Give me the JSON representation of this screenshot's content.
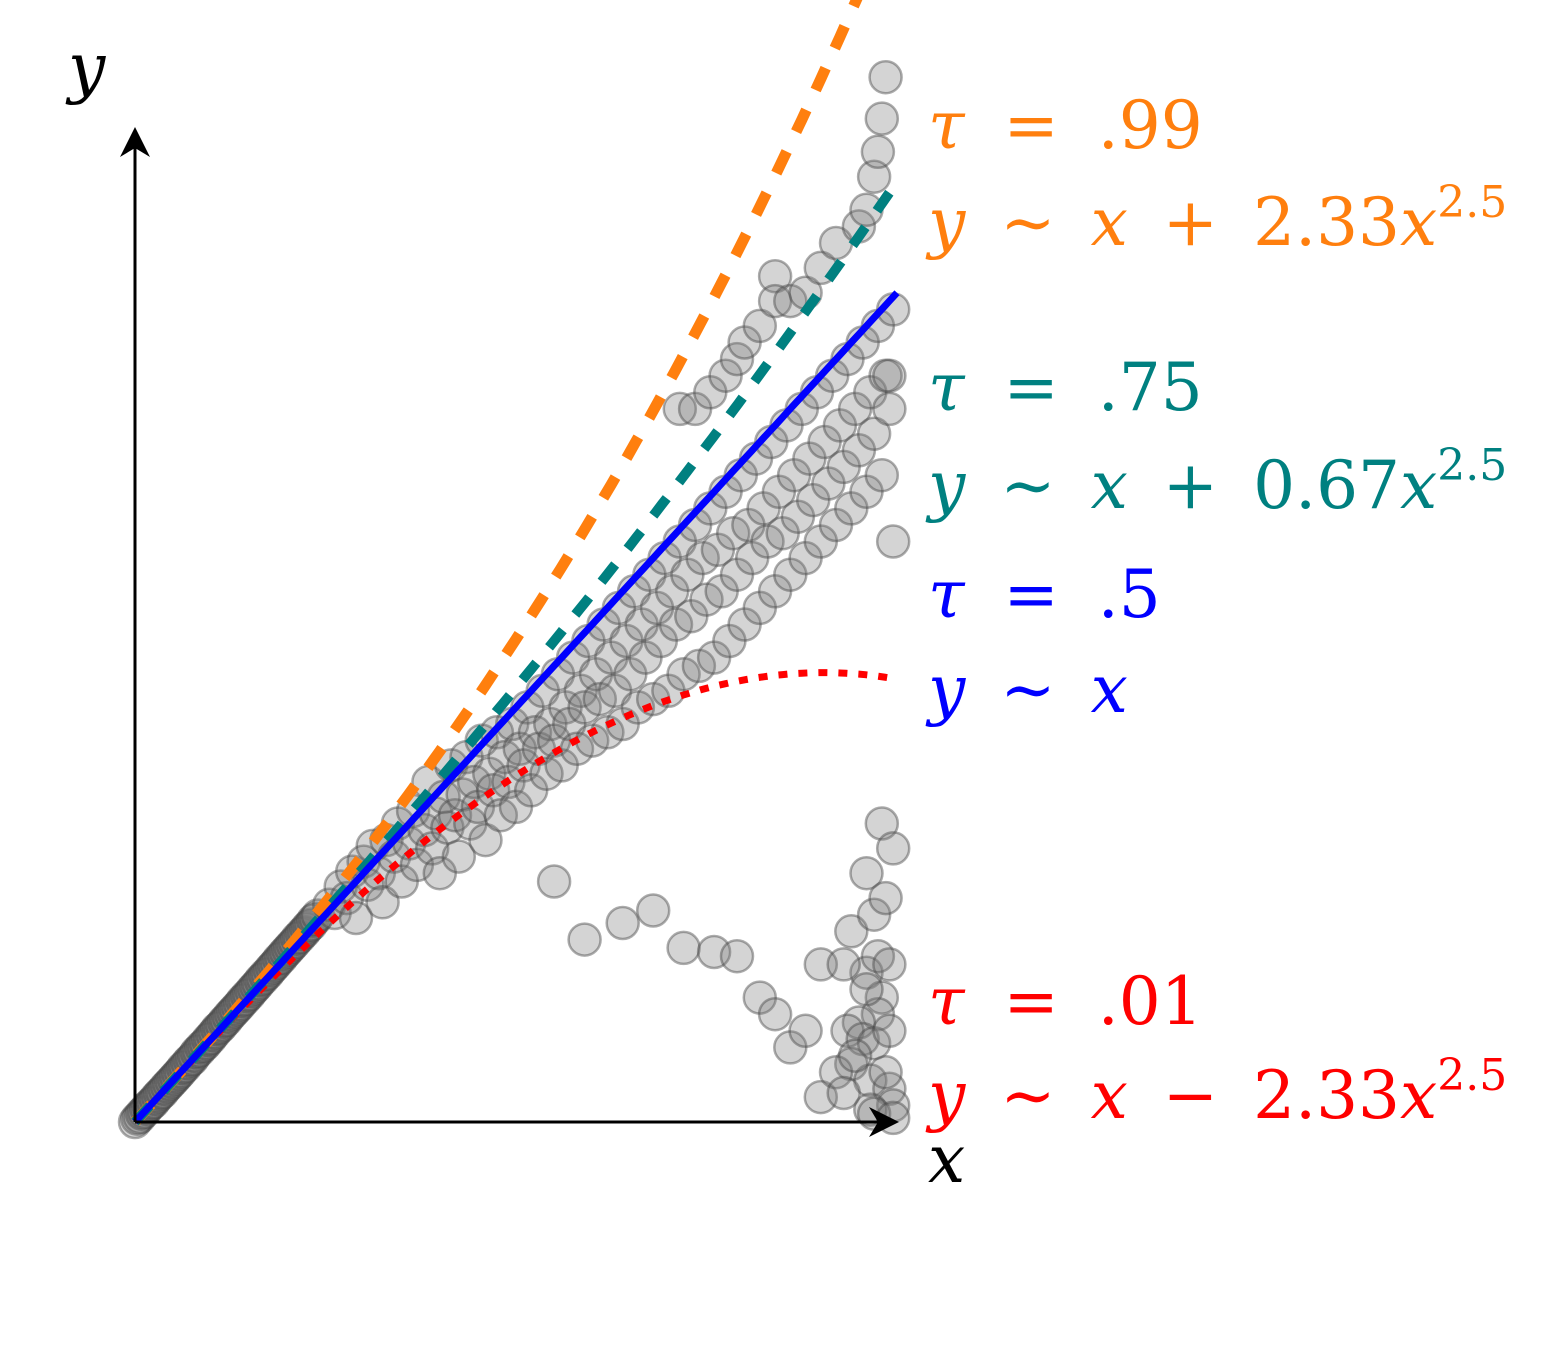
{
  "chart_data": {
    "type": "scatter",
    "title": "",
    "xlabel": "x",
    "ylabel": "y",
    "xlim": [
      0,
      1
    ],
    "ylim": [
      0,
      1.3
    ],
    "grid": false,
    "axes_style": "arrows",
    "points": [
      [
        0.0,
        0.0
      ],
      [
        0.003,
        0.004
      ],
      [
        0.006,
        0.006
      ],
      [
        0.009,
        0.01
      ],
      [
        0.012,
        0.012
      ],
      [
        0.015,
        0.016
      ],
      [
        0.018,
        0.019
      ],
      [
        0.021,
        0.022
      ],
      [
        0.024,
        0.024
      ],
      [
        0.027,
        0.028
      ],
      [
        0.03,
        0.031
      ],
      [
        0.033,
        0.034
      ],
      [
        0.036,
        0.036
      ],
      [
        0.039,
        0.04
      ],
      [
        0.042,
        0.043
      ],
      [
        0.045,
        0.046
      ],
      [
        0.048,
        0.049
      ],
      [
        0.051,
        0.052
      ],
      [
        0.054,
        0.055
      ],
      [
        0.057,
        0.058
      ],
      [
        0.06,
        0.061
      ],
      [
        0.063,
        0.065
      ],
      [
        0.066,
        0.067
      ],
      [
        0.069,
        0.071
      ],
      [
        0.072,
        0.074
      ],
      [
        0.075,
        0.076
      ],
      [
        0.078,
        0.08
      ],
      [
        0.081,
        0.084
      ],
      [
        0.084,
        0.086
      ],
      [
        0.087,
        0.09
      ],
      [
        0.09,
        0.092
      ],
      [
        0.093,
        0.095
      ],
      [
        0.096,
        0.099
      ],
      [
        0.099,
        0.101
      ],
      [
        0.102,
        0.105
      ],
      [
        0.105,
        0.108
      ],
      [
        0.108,
        0.112
      ],
      [
        0.111,
        0.114
      ],
      [
        0.114,
        0.117
      ],
      [
        0.117,
        0.121
      ],
      [
        0.12,
        0.123
      ],
      [
        0.123,
        0.127
      ],
      [
        0.126,
        0.13
      ],
      [
        0.129,
        0.133
      ],
      [
        0.132,
        0.136
      ],
      [
        0.135,
        0.139
      ],
      [
        0.138,
        0.142
      ],
      [
        0.141,
        0.146
      ],
      [
        0.144,
        0.148
      ],
      [
        0.147,
        0.152
      ],
      [
        0.15,
        0.154
      ],
      [
        0.153,
        0.158
      ],
      [
        0.156,
        0.161
      ],
      [
        0.159,
        0.164
      ],
      [
        0.162,
        0.167
      ],
      [
        0.165,
        0.171
      ],
      [
        0.168,
        0.173
      ],
      [
        0.171,
        0.177
      ],
      [
        0.174,
        0.179
      ],
      [
        0.177,
        0.183
      ],
      [
        0.18,
        0.186
      ],
      [
        0.183,
        0.189
      ],
      [
        0.186,
        0.192
      ],
      [
        0.189,
        0.196
      ],
      [
        0.192,
        0.198
      ],
      [
        0.195,
        0.202
      ],
      [
        0.198,
        0.205
      ],
      [
        0.201,
        0.208
      ],
      [
        0.204,
        0.211
      ],
      [
        0.207,
        0.214
      ],
      [
        0.21,
        0.217
      ],
      [
        0.213,
        0.221
      ],
      [
        0.216,
        0.223
      ],
      [
        0.219,
        0.227
      ],
      [
        0.222,
        0.229
      ],
      [
        0.225,
        0.233
      ],
      [
        0.228,
        0.236
      ],
      [
        0.231,
        0.238
      ],
      [
        0.234,
        0.243
      ],
      [
        0.237,
        0.245
      ],
      [
        0.24,
        0.249
      ],
      [
        0.255,
        0.262
      ],
      [
        0.262,
        0.252
      ],
      [
        0.27,
        0.284
      ],
      [
        0.278,
        0.27
      ],
      [
        0.285,
        0.302
      ],
      [
        0.29,
        0.246
      ],
      [
        0.3,
        0.314
      ],
      [
        0.305,
        0.286
      ],
      [
        0.312,
        0.333
      ],
      [
        0.32,
        0.3
      ],
      [
        0.325,
        0.265
      ],
      [
        0.33,
        0.34
      ],
      [
        0.34,
        0.32
      ],
      [
        0.345,
        0.36
      ],
      [
        0.35,
        0.29
      ],
      [
        0.36,
        0.336
      ],
      [
        0.365,
        0.375
      ],
      [
        0.37,
        0.31
      ],
      [
        0.38,
        0.352
      ],
      [
        0.385,
        0.41
      ],
      [
        0.39,
        0.33
      ],
      [
        0.395,
        0.372
      ],
      [
        0.4,
        0.3
      ],
      [
        0.405,
        0.392
      ],
      [
        0.41,
        0.355
      ],
      [
        0.415,
        0.43
      ],
      [
        0.42,
        0.37
      ],
      [
        0.425,
        0.32
      ],
      [
        0.43,
        0.395
      ],
      [
        0.435,
        0.44
      ],
      [
        0.44,
        0.36
      ],
      [
        0.445,
        0.41
      ],
      [
        0.45,
        0.38
      ],
      [
        0.455,
        0.46
      ],
      [
        0.46,
        0.34
      ],
      [
        0.465,
        0.42
      ],
      [
        0.47,
        0.4
      ],
      [
        0.475,
        0.47
      ],
      [
        0.48,
        0.37
      ],
      [
        0.485,
        0.44
      ],
      [
        0.49,
        0.41
      ],
      [
        0.495,
        0.48
      ],
      [
        0.5,
        0.38
      ],
      [
        0.505,
        0.45
      ],
      [
        0.51,
        0.43
      ],
      [
        0.515,
        0.5
      ],
      [
        0.52,
        0.4
      ],
      [
        0.525,
        0.47
      ],
      [
        0.53,
        0.45
      ],
      [
        0.535,
        0.52
      ],
      [
        0.54,
        0.42
      ],
      [
        0.545,
        0.48
      ],
      [
        0.55,
        0.46
      ],
      [
        0.555,
        0.54
      ],
      [
        0.56,
        0.43
      ],
      [
        0.565,
        0.5
      ],
      [
        0.57,
        0.48
      ],
      [
        0.575,
        0.56
      ],
      [
        0.58,
        0.45
      ],
      [
        0.585,
        0.52
      ],
      [
        0.59,
        0.5
      ],
      [
        0.595,
        0.58
      ],
      [
        0.6,
        0.46
      ],
      [
        0.605,
        0.54
      ],
      [
        0.61,
        0.51
      ],
      [
        0.615,
        0.6
      ],
      [
        0.62,
        0.47
      ],
      [
        0.625,
        0.56
      ],
      [
        0.63,
        0.52
      ],
      [
        0.635,
        0.62
      ],
      [
        0.64,
        0.48
      ],
      [
        0.645,
        0.58
      ],
      [
        0.65,
        0.54
      ],
      [
        0.655,
        0.64
      ],
      [
        0.66,
        0.5
      ],
      [
        0.665,
        0.6
      ],
      [
        0.67,
        0.56
      ],
      [
        0.675,
        0.66
      ],
      [
        0.68,
        0.51
      ],
      [
        0.685,
        0.62
      ],
      [
        0.69,
        0.58
      ],
      [
        0.695,
        0.68
      ],
      [
        0.7,
        0.52
      ],
      [
        0.705,
        0.64
      ],
      [
        0.71,
        0.6
      ],
      [
        0.715,
        0.7
      ],
      [
        0.72,
        0.54
      ],
      [
        0.725,
        0.66
      ],
      [
        0.73,
        0.61
      ],
      [
        0.735,
        0.72
      ],
      [
        0.74,
        0.55
      ],
      [
        0.745,
        0.68
      ],
      [
        0.75,
        0.63
      ],
      [
        0.755,
        0.74
      ],
      [
        0.76,
        0.56
      ],
      [
        0.765,
        0.69
      ],
      [
        0.77,
        0.64
      ],
      [
        0.775,
        0.76
      ],
      [
        0.78,
        0.58
      ],
      [
        0.785,
        0.71
      ],
      [
        0.79,
        0.66
      ],
      [
        0.795,
        0.78
      ],
      [
        0.8,
        0.6
      ],
      [
        0.805,
        0.72
      ],
      [
        0.81,
        0.68
      ],
      [
        0.815,
        0.8
      ],
      [
        0.82,
        0.62
      ],
      [
        0.825,
        0.74
      ],
      [
        0.83,
        0.7
      ],
      [
        0.835,
        0.82
      ],
      [
        0.84,
        0.64
      ],
      [
        0.845,
        0.76
      ],
      [
        0.85,
        0.71
      ],
      [
        0.855,
        0.84
      ],
      [
        0.86,
        0.66
      ],
      [
        0.865,
        0.78
      ],
      [
        0.87,
        0.73
      ],
      [
        0.875,
        0.86
      ],
      [
        0.88,
        0.68
      ],
      [
        0.885,
        0.8
      ],
      [
        0.89,
        0.75
      ],
      [
        0.895,
        0.88
      ],
      [
        0.9,
        0.7
      ],
      [
        0.905,
        0.82
      ],
      [
        0.91,
        0.77
      ],
      [
        0.915,
        0.9
      ],
      [
        0.92,
        0.72
      ],
      [
        0.925,
        0.84
      ],
      [
        0.93,
        0.79
      ],
      [
        0.935,
        0.92
      ],
      [
        0.94,
        0.74
      ],
      [
        0.945,
        0.86
      ],
      [
        0.95,
        0.81
      ],
      [
        0.955,
        0.94
      ],
      [
        0.96,
        0.76
      ],
      [
        0.965,
        0.88
      ],
      [
        0.97,
        0.83
      ],
      [
        0.975,
        0.96
      ],
      [
        0.98,
        0.78
      ],
      [
        0.985,
        0.9
      ],
      [
        0.99,
        0.86
      ],
      [
        0.995,
        0.98
      ],
      [
        0.715,
        0.86
      ],
      [
        0.735,
        0.86
      ],
      [
        0.755,
        0.88
      ],
      [
        0.775,
        0.9
      ],
      [
        0.79,
        0.92
      ],
      [
        0.8,
        0.94
      ],
      [
        0.82,
        0.96
      ],
      [
        0.84,
        1.02
      ],
      [
        0.84,
        0.99
      ],
      [
        0.86,
        0.99
      ],
      [
        0.88,
        1.0
      ],
      [
        0.9,
        1.03
      ],
      [
        0.92,
        1.06
      ],
      [
        0.95,
        1.08
      ],
      [
        0.96,
        1.1
      ],
      [
        0.97,
        1.14
      ],
      [
        0.975,
        1.17
      ],
      [
        0.98,
        1.21
      ],
      [
        0.985,
        1.26
      ],
      [
        0.99,
        0.9
      ],
      [
        0.995,
        0.7
      ],
      [
        0.55,
        0.29
      ],
      [
        0.59,
        0.22
      ],
      [
        0.64,
        0.24
      ],
      [
        0.68,
        0.255
      ],
      [
        0.72,
        0.21
      ],
      [
        0.76,
        0.205
      ],
      [
        0.79,
        0.2
      ],
      [
        0.82,
        0.15
      ],
      [
        0.84,
        0.13
      ],
      [
        0.86,
        0.09
      ],
      [
        0.88,
        0.11
      ],
      [
        0.9,
        0.19
      ],
      [
        0.94,
        0.23
      ],
      [
        0.96,
        0.3
      ],
      [
        0.98,
        0.36
      ],
      [
        0.96,
        0.18
      ],
      [
        0.93,
        0.19
      ],
      [
        0.97,
        0.25
      ],
      [
        0.98,
        0.15
      ],
      [
        0.975,
        0.13
      ],
      [
        0.95,
        0.12
      ],
      [
        0.935,
        0.11
      ],
      [
        0.955,
        0.1
      ],
      [
        0.97,
        0.095
      ],
      [
        0.94,
        0.07
      ],
      [
        0.965,
        0.05
      ],
      [
        0.99,
        0.04
      ],
      [
        0.995,
        0.02
      ],
      [
        0.9,
        0.03
      ],
      [
        0.92,
        0.06
      ],
      [
        0.975,
        0.2
      ],
      [
        0.99,
        0.11
      ],
      [
        0.985,
        0.27
      ],
      [
        0.995,
        0.33
      ],
      [
        0.965,
        0.015
      ],
      [
        0.96,
        0.16
      ],
      [
        0.99,
        0.19
      ],
      [
        0.97,
        0.01
      ],
      [
        0.93,
        0.035
      ],
      [
        0.945,
        0.08
      ],
      [
        0.995,
        0.005
      ],
      [
        0.985,
        0.06
      ]
    ],
    "series": [
      {
        "name": "τ = .99",
        "formula": "y ~ x + 2.33x^2.5",
        "coef": 2.33,
        "color": "#ff7f0e",
        "style": "dashed-thick"
      },
      {
        "name": "τ = .75",
        "formula": "y ~ x + 0.67x^2.5",
        "coef": 0.67,
        "color": "#008080",
        "style": "dashed"
      },
      {
        "name": "τ = .5",
        "formula": "y ~ x",
        "coef": 0,
        "color": "#0000ff",
        "style": "solid"
      },
      {
        "name": "τ = .01",
        "formula": "y ~ x − 2.33x^2.5",
        "coef": -2.33,
        "color": "#ff0000",
        "style": "dotted"
      }
    ],
    "legend_placement": "right, next to line ends"
  },
  "labels": {
    "x_axis": "x",
    "y_axis": "y",
    "q99": {
      "tau": "τ",
      "eq": "=",
      "val": ".99",
      "y": "y",
      "sim": "∼",
      "x": "x",
      "op": "+",
      "coef": "2.33",
      "x2": "x",
      "exp": "2.5"
    },
    "q75": {
      "tau": "τ",
      "eq": "=",
      "val": ".75",
      "y": "y",
      "sim": "∼",
      "x": "x",
      "op": "+",
      "coef": "0.67",
      "x2": "x",
      "exp": "2.5"
    },
    "q50": {
      "tau": "τ",
      "eq": "=",
      "val": ".5",
      "y": "y",
      "sim": "∼",
      "x": "x"
    },
    "q01": {
      "tau": "τ",
      "eq": "=",
      "val": ".01",
      "y": "y",
      "sim": "∼",
      "x": "x",
      "op": "−",
      "coef": "2.33",
      "x2": "x",
      "exp": "2.5"
    }
  }
}
